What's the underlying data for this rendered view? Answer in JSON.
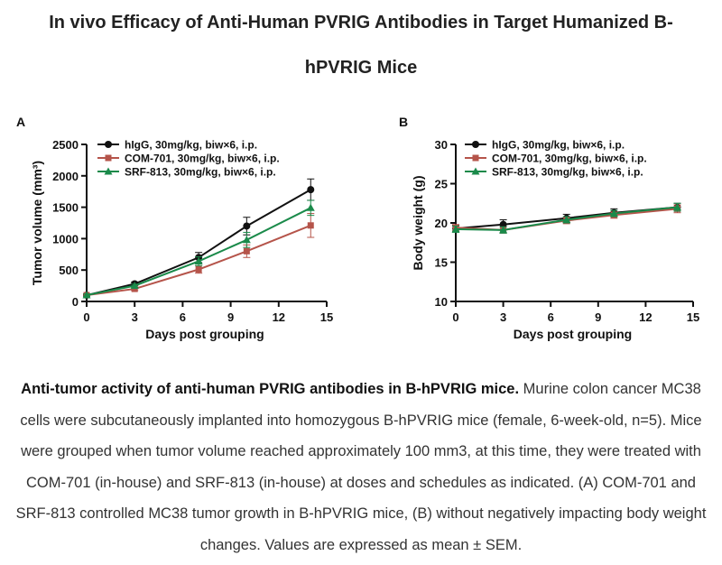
{
  "title_line1": "In vivo Efficacy of Anti-Human PVRIG Antibodies in Target Humanized B-",
  "title_line2": "hPVRIG Mice",
  "colors": {
    "igG": "#111111",
    "com": "#b5544a",
    "srf": "#1a8a4a"
  },
  "chart_data": [
    {
      "type": "line",
      "panel": "A",
      "xlabel": "Days post grouping",
      "ylabel": "Tumor volume (mm³)",
      "xlim": [
        0,
        15
      ],
      "ylim": [
        0,
        2500
      ],
      "xticks": [
        "0",
        "3",
        "6",
        "9",
        "12",
        "15"
      ],
      "yticks": [
        "0",
        "500",
        "1000",
        "1500",
        "2000",
        "2500"
      ],
      "legend_position": "top-left",
      "x": [
        0,
        3,
        7,
        10,
        14
      ],
      "series": [
        {
          "name": "hIgG, 30mg/kg, biw×6, i.p.",
          "marker": "circle",
          "values": [
            100,
            280,
            700,
            1200,
            1780
          ],
          "sem": [
            20,
            30,
            80,
            140,
            170
          ]
        },
        {
          "name": "COM-701, 30mg/kg, biw×6, i.p.",
          "marker": "square",
          "values": [
            100,
            200,
            510,
            800,
            1210
          ],
          "sem": [
            20,
            25,
            60,
            100,
            190
          ]
        },
        {
          "name": "SRF-813, 30mg/kg, biw×6, i.p.",
          "marker": "triangle",
          "values": [
            100,
            250,
            640,
            980,
            1490
          ],
          "sem": [
            20,
            25,
            70,
            120,
            120
          ]
        }
      ]
    },
    {
      "type": "line",
      "panel": "B",
      "xlabel": "Days post grouping",
      "ylabel": "Body weight (g)",
      "xlim": [
        0,
        15
      ],
      "ylim": [
        10,
        30
      ],
      "xticks": [
        "0",
        "3",
        "6",
        "9",
        "12",
        "15"
      ],
      "yticks": [
        "10",
        "15",
        "20",
        "25",
        "30"
      ],
      "legend_position": "top-left",
      "x": [
        0,
        3,
        7,
        10,
        14
      ],
      "series": [
        {
          "name": "hIgG, 30mg/kg, biw×6, i.p.",
          "marker": "circle",
          "values": [
            19.3,
            19.8,
            20.6,
            21.3,
            22.0
          ],
          "sem": [
            0.4,
            0.6,
            0.5,
            0.5,
            0.5
          ]
        },
        {
          "name": "COM-701, 30mg/kg, biw×6, i.p.",
          "marker": "square",
          "values": [
            19.4,
            19.1,
            20.3,
            21.0,
            21.8
          ],
          "sem": [
            0.4,
            0.4,
            0.4,
            0.4,
            0.5
          ]
        },
        {
          "name": "SRF-813, 30mg/kg, biw×6, i.p.",
          "marker": "triangle",
          "values": [
            19.2,
            19.1,
            20.4,
            21.2,
            22.0
          ],
          "sem": [
            0.4,
            0.4,
            0.4,
            0.4,
            0.5
          ]
        }
      ]
    }
  ],
  "caption": {
    "bold": "Anti-tumor activity of anti-human PVRIG antibodies in B-hPVRIG mice.",
    "text": " Murine colon cancer MC38 cells were subcutaneously implanted into homozygous B-hPVRIG mice (female, 6-week-old, n=5). Mice were grouped when tumor volume reached approximately 100 mm3, at this time, they were treated with COM-701 (in-house) and SRF-813 (in-house) at doses and schedules as indicated. (A) COM-701 and SRF-813 controlled MC38 tumor growth in B-hPVRIG mice, (B) without negatively impacting body weight changes. Values are expressed as mean ± SEM."
  }
}
